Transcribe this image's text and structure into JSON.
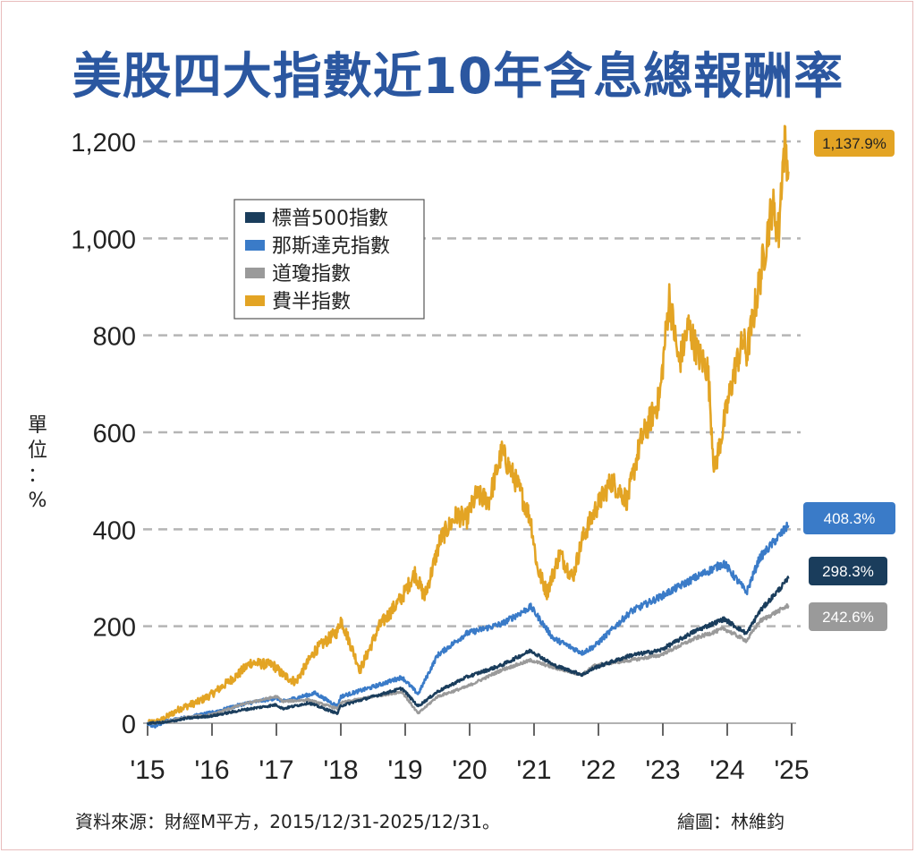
{
  "title": "美股四大指數近10年含息總報酬率",
  "unit_label": "單位：%",
  "unit_chars": [
    "單",
    "位",
    "：",
    "%"
  ],
  "source": "資料來源：財經M平方，2015/12/31-2025/12/31。",
  "credit": "繪圖：林維鈞",
  "colors": {
    "sp500": "#1a3d5c",
    "nasdaq": "#3a7bc8",
    "dow": "#9a9a9a",
    "sox": "#e3a424",
    "grid": "#b5b5b5",
    "title": "#2b57a0"
  },
  "chart_data": {
    "type": "line",
    "title": "美股四大指數近10年含息總報酬率",
    "ylabel": "單位：%",
    "xlabel": "",
    "ylim": [
      0,
      1200
    ],
    "xlim": [
      2016.0,
      2026.0
    ],
    "yticks": [
      0,
      200,
      400,
      600,
      800,
      1000,
      1200
    ],
    "ytick_labels": [
      "0",
      "200",
      "400",
      "600",
      "800",
      "1,000",
      "1,200"
    ],
    "xticks": [
      2016,
      2017,
      2018,
      2019,
      2020,
      2021,
      2022,
      2023,
      2024,
      2025,
      2026
    ],
    "xtick_labels": [
      "'15",
      "'16",
      "'17",
      "'18",
      "'19",
      "'20",
      "'21",
      "'22",
      "'23",
      "'24",
      "'25"
    ],
    "grid": true,
    "legend_position": "top-left",
    "series": [
      {
        "key": "sp500",
        "name": "標普500指數",
        "end_label": "298.3%",
        "x": [
          2016.0,
          2016.3,
          2016.6,
          2017.0,
          2017.5,
          2018.0,
          2018.1,
          2018.5,
          2018.95,
          2019.0,
          2019.5,
          2019.95,
          2020.2,
          2020.5,
          2020.95,
          2021.5,
          2021.95,
          2022.3,
          2022.75,
          2022.95,
          2023.5,
          2023.95,
          2024.5,
          2024.95,
          2025.3,
          2025.5,
          2025.95
        ],
        "y": [
          0,
          2,
          10,
          15,
          28,
          38,
          30,
          42,
          20,
          36,
          55,
          72,
          35,
          65,
          95,
          120,
          150,
          120,
          100,
          115,
          140,
          150,
          190,
          215,
          185,
          230,
          298
        ]
      },
      {
        "key": "nasdaq",
        "name": "那斯達克指數",
        "end_label": "408.3%",
        "x": [
          2016.0,
          2016.1,
          2016.3,
          2016.6,
          2017.0,
          2017.5,
          2018.0,
          2018.1,
          2018.6,
          2018.95,
          2019.0,
          2019.5,
          2019.95,
          2020.2,
          2020.5,
          2020.95,
          2021.5,
          2021.95,
          2022.3,
          2022.75,
          2022.95,
          2023.5,
          2023.95,
          2024.5,
          2024.95,
          2025.3,
          2025.5,
          2025.95
        ],
        "y": [
          0,
          -8,
          5,
          12,
          22,
          40,
          52,
          45,
          62,
          35,
          55,
          75,
          95,
          60,
          140,
          185,
          205,
          240,
          175,
          145,
          160,
          230,
          260,
          300,
          330,
          270,
          340,
          408
        ]
      },
      {
        "key": "dow",
        "name": "道瓊指數",
        "end_label": "242.6%",
        "x": [
          2016.0,
          2016.3,
          2016.6,
          2017.0,
          2017.5,
          2018.0,
          2018.1,
          2018.5,
          2018.95,
          2019.0,
          2019.5,
          2019.95,
          2020.2,
          2020.5,
          2020.95,
          2021.5,
          2021.95,
          2022.3,
          2022.75,
          2022.95,
          2023.5,
          2023.95,
          2024.5,
          2024.95,
          2025.3,
          2025.5,
          2025.95
        ],
        "y": [
          0,
          3,
          12,
          18,
          40,
          55,
          45,
          48,
          30,
          42,
          55,
          65,
          20,
          55,
          75,
          110,
          130,
          115,
          100,
          120,
          130,
          140,
          175,
          195,
          170,
          210,
          243
        ]
      },
      {
        "key": "sox",
        "name": "費半指數",
        "end_label": "1,137.9%",
        "x": [
          2016.0,
          2016.2,
          2016.5,
          2016.8,
          2017.0,
          2017.4,
          2017.6,
          2017.95,
          2018.1,
          2018.3,
          2018.6,
          2018.95,
          2019.0,
          2019.3,
          2019.6,
          2019.95,
          2020.15,
          2020.3,
          2020.55,
          2020.8,
          2020.95,
          2021.1,
          2021.3,
          2021.5,
          2021.75,
          2021.95,
          2022.05,
          2022.2,
          2022.4,
          2022.6,
          2022.75,
          2022.95,
          2023.2,
          2023.45,
          2023.65,
          2023.95,
          2024.1,
          2024.25,
          2024.4,
          2024.55,
          2024.7,
          2024.8,
          2024.95,
          2025.1,
          2025.25,
          2025.3,
          2025.5,
          2025.7,
          2025.8,
          2025.85,
          2025.9,
          2025.95
        ],
        "y": [
          0,
          5,
          30,
          45,
          60,
          100,
          125,
          120,
          100,
          85,
          150,
          190,
          215,
          110,
          200,
          260,
          310,
          260,
          380,
          430,
          420,
          470,
          460,
          560,
          490,
          420,
          320,
          270,
          350,
          300,
          380,
          440,
          500,
          460,
          580,
          670,
          880,
          740,
          820,
          760,
          730,
          520,
          620,
          720,
          790,
          760,
          910,
          1070,
          1010,
          1140,
          1200,
          1138
        ]
      }
    ]
  }
}
